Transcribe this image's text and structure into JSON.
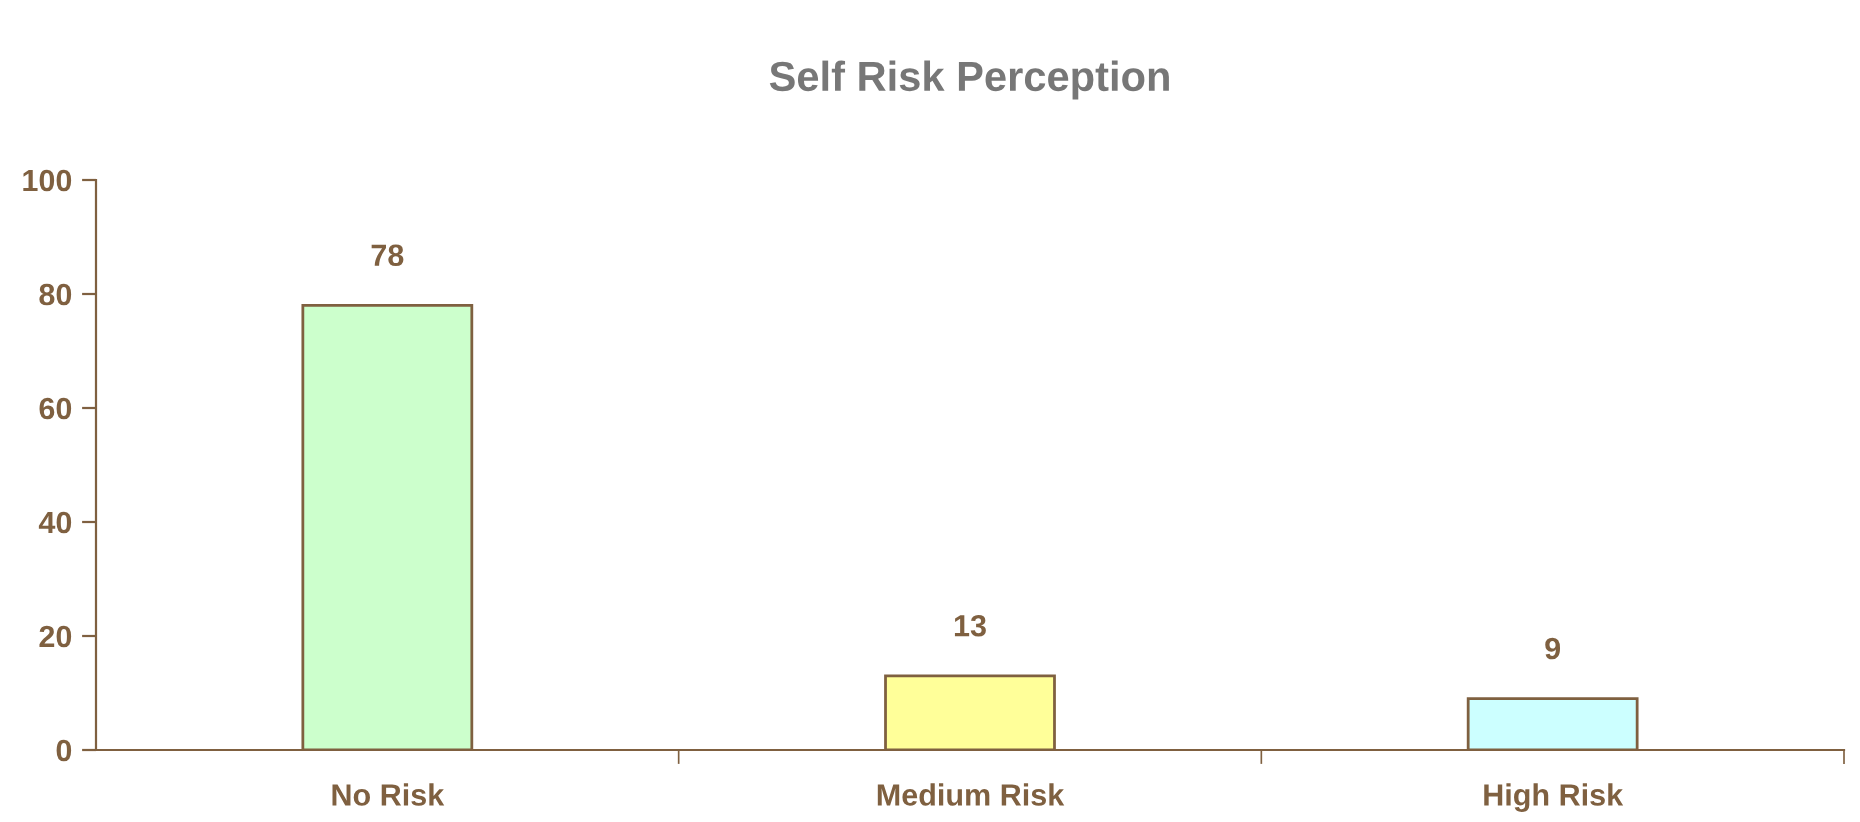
{
  "chart_data": {
    "type": "bar",
    "title": "Self Risk Perception",
    "categories": [
      "No Risk",
      "Medium Risk",
      "High Risk"
    ],
    "values": [
      78,
      13,
      9
    ],
    "colors": [
      "#ccffcc",
      "#ffff99",
      "#ccffff"
    ],
    "ylim": [
      0,
      100
    ],
    "yticks": [
      0,
      20,
      40,
      60,
      80,
      100
    ],
    "data_labels": true,
    "grid": false,
    "legend": false
  }
}
